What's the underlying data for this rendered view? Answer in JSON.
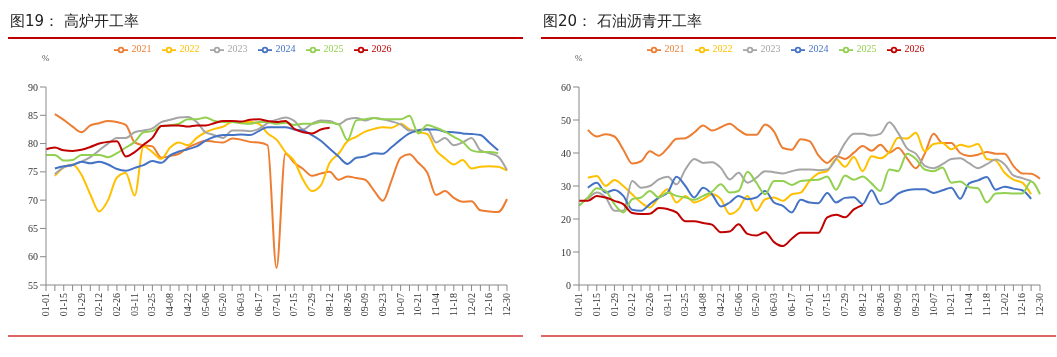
{
  "chart_data": [
    {
      "type": "line",
      "title": "图19：  高炉开工率",
      "ylabel": "%",
      "legend": "top",
      "grid": false,
      "ylim": [
        55,
        90
      ],
      "yticks": [
        55,
        60,
        65,
        70,
        75,
        80,
        85,
        90
      ],
      "categories": [
        "01-01",
        null,
        "01-15",
        null,
        "01-29",
        null,
        "02-12",
        null,
        "02-26",
        null,
        "03-11",
        null,
        "03-25",
        null,
        "04-08",
        null,
        "04-22",
        null,
        "05-06",
        null,
        "05-20",
        null,
        "06-03",
        null,
        "06-17",
        null,
        "07-01",
        null,
        "07-15",
        null,
        "07-29",
        null,
        "08-12",
        null,
        "08-26",
        null,
        "09-09",
        null,
        "09-23",
        null,
        "10-07",
        null,
        "10-21",
        null,
        "11-04",
        null,
        "11-18",
        null,
        "12-02",
        null,
        "12-16",
        null,
        "12-30"
      ],
      "series": [
        {
          "name": "2021",
          "color": "#ed7d31",
          "values": [
            null,
            85.2,
            84.2,
            83,
            82,
            83.2,
            83.6,
            84,
            83.8,
            83.3,
            80.2,
            79.7,
            79.5,
            77.5,
            77.8,
            78.2,
            79.3,
            80,
            80.5,
            80.3,
            80.2,
            80.9,
            80.7,
            80.3,
            80.2,
            79.7,
            58,
            78.2,
            76.6,
            75.5,
            74.3,
            74.7,
            75,
            73.6,
            74.2,
            73.9,
            73.6,
            71.7,
            69.9,
            73.6,
            77.5,
            78.1,
            76.6,
            74.9,
            70.9,
            71.6,
            70.4,
            69.7,
            69.8,
            68.2,
            68,
            67.9,
            70.2
          ]
        },
        {
          "name": "2022",
          "color": "#ffc000",
          "values": [
            null,
            74.3,
            75.8,
            76.3,
            74.5,
            71,
            68,
            70,
            74,
            74.8,
            70.8,
            79.5,
            78.5,
            77.3,
            79.3,
            80.2,
            79.7,
            81,
            82,
            82.6,
            83,
            83.8,
            83.8,
            83.8,
            83.5,
            81.8,
            80.7,
            78.5,
            76.9,
            73.6,
            71.6,
            72.6,
            76.6,
            78.2,
            80.4,
            81.2,
            82.1,
            82.6,
            82.9,
            82.8,
            83.5,
            82.5,
            82,
            81.7,
            78.8,
            77.4,
            76.3,
            77.1,
            75.6,
            75.9,
            76,
            75.9,
            75.2
          ]
        },
        {
          "name": "2023",
          "color": "#a5a5a5",
          "values": [
            null,
            74.6,
            75.8,
            76.2,
            76.8,
            77.6,
            78.8,
            80,
            81,
            81,
            82,
            82.3,
            82.7,
            83.8,
            84.2,
            84.6,
            84.7,
            83.8,
            82,
            81.5,
            81,
            82.3,
            82.3,
            82.2,
            82.6,
            83.6,
            84.2,
            84.6,
            84,
            82.5,
            83.5,
            84.1,
            84,
            83.4,
            84.3,
            84.5,
            84.1,
            84.5,
            84.3,
            83.9,
            83.4,
            82.3,
            82.4,
            82.6,
            80.2,
            81,
            79.7,
            80.2,
            81,
            78.8,
            78.3,
            77.7,
            75.3
          ]
        },
        {
          "name": "2024",
          "color": "#4472c4",
          "values": [
            null,
            75.6,
            76,
            76.2,
            76.8,
            76.5,
            76.8,
            76.3,
            75.5,
            75.2,
            75.7,
            76.2,
            76.9,
            76.6,
            77.9,
            78.6,
            79,
            79.5,
            80.5,
            81.2,
            81.5,
            81.5,
            81.6,
            81.5,
            82.2,
            82.9,
            82.9,
            82.9,
            82.5,
            82.3,
            81.5,
            80.5,
            79.1,
            77.7,
            76.4,
            77.5,
            77.7,
            78.3,
            78.2,
            79.4,
            80.7,
            81.8,
            82.3,
            82.5,
            82.5,
            82.1,
            82,
            81.8,
            81.7,
            81.5,
            80.2,
            78.8,
            null
          ]
        },
        {
          "name": "2025",
          "color": "#92d050",
          "values": [
            78,
            78,
            77,
            77.1,
            78,
            78,
            78,
            77.6,
            78.3,
            79.3,
            80.3,
            82,
            82.2,
            83.1,
            83.2,
            83.5,
            84.3,
            84.3,
            84.6,
            84,
            83.8,
            83.8,
            83.6,
            83.5,
            83.8,
            83.8,
            83.5,
            83.7,
            83.3,
            83.5,
            83.5,
            83.8,
            83.7,
            83.4,
            80.6,
            84.1,
            84.3,
            84.5,
            84.3,
            84.3,
            84.3,
            84.9,
            81.8,
            83.3,
            82.8,
            82.1,
            81.2,
            80.3,
            78.8,
            78.5,
            78.5,
            78.3,
            null
          ]
        },
        {
          "name": "2026",
          "color": "#c00000",
          "values": [
            79,
            79.3,
            78.8,
            78.7,
            78.9,
            79.4,
            80,
            80.3,
            80.4,
            77.7,
            78.5,
            79.8,
            81,
            83.1,
            83.2,
            83.2,
            83,
            83.2,
            83.2,
            83.6,
            84,
            84,
            83.9,
            84.2,
            84.3,
            84,
            83.8,
            84,
            82.6,
            82,
            81.8,
            82.5,
            82.8,
            null,
            null,
            null,
            null,
            null,
            null,
            null,
            null,
            null,
            null,
            null,
            null,
            null,
            null,
            null,
            null,
            null,
            null,
            null,
            null
          ]
        }
      ]
    },
    {
      "type": "line",
      "title": "图20：  石油沥青开工率",
      "ylabel": "%",
      "legend": "top",
      "grid": false,
      "ylim": [
        0,
        60
      ],
      "yticks": [
        0,
        10,
        20,
        30,
        40,
        50,
        60
      ],
      "categories": [
        "01-01",
        null,
        "01-15",
        null,
        "01-29",
        null,
        "02-12",
        null,
        "02-26",
        null,
        "03-11",
        null,
        "03-25",
        null,
        "04-08",
        null,
        "04-22",
        null,
        "05-06",
        null,
        "05-20",
        null,
        "06-03",
        null,
        "06-17",
        null,
        "07-01",
        null,
        "07-15",
        null,
        "07-29",
        null,
        "08-12",
        null,
        "08-26",
        null,
        "09-09",
        null,
        "09-23",
        null,
        "10-07",
        null,
        "10-21",
        null,
        "11-04",
        null,
        "11-18",
        null,
        "12-02",
        null,
        "12-16",
        null,
        "12-30"
      ],
      "series": [
        {
          "name": "2021",
          "color": "#ed7d31",
          "values": [
            null,
            47,
            45,
            45.7,
            45,
            41,
            36.8,
            37.5,
            40.5,
            39.2,
            41.5,
            44.3,
            44.5,
            46.2,
            48.3,
            46.8,
            47.8,
            48.9,
            47,
            45.5,
            45.5,
            48.6,
            46.5,
            41.5,
            41,
            44.2,
            43.6,
            39.3,
            37,
            39.1,
            38.2,
            40.1,
            42.1,
            40.7,
            42.5,
            40.1,
            41.6,
            38.4,
            35.4,
            39.8,
            45.8,
            43,
            43,
            40,
            39.1,
            39.5,
            40.3,
            39.8,
            39.8,
            36.1,
            33.8,
            33.7,
            32.2
          ]
        },
        {
          "name": "2022",
          "color": "#ffc000",
          "values": [
            null,
            32.5,
            33,
            30,
            31.8,
            30,
            27.5,
            25,
            23.5,
            26.5,
            29,
            25,
            27,
            25,
            26,
            27.5,
            26,
            21.5,
            23,
            27,
            22.5,
            26,
            26.5,
            25.5,
            27.5,
            28,
            31.5,
            33.8,
            34.5,
            38.2,
            35.8,
            38.8,
            34.5,
            39,
            38.4,
            40.3,
            44.6,
            44.4,
            46.1,
            40.5,
            42.7,
            43,
            41.1,
            42.5,
            41.9,
            42.7,
            38.2,
            37.7,
            34,
            31.9,
            31,
            27.5,
            null
          ]
        },
        {
          "name": "2023",
          "color": "#a5a5a5",
          "values": [
            null,
            26,
            28,
            26.5,
            22.5,
            22.5,
            31.5,
            29.5,
            30,
            32,
            32.8,
            30.5,
            35,
            38.2,
            37,
            37.2,
            35.5,
            32,
            34,
            31,
            32.5,
            34.5,
            34.2,
            33.8,
            34.5,
            35,
            35,
            34.8,
            35,
            38.2,
            43,
            45.8,
            45.8,
            45.3,
            45.8,
            49.3,
            46.1,
            41.4,
            39.8,
            36.1,
            35.4,
            36.6,
            38.2,
            38.4,
            36.9,
            35.4,
            36.6,
            38,
            36.6,
            33.2,
            32.4,
            31.5,
            null
          ]
        },
        {
          "name": "2024",
          "color": "#4472c4",
          "values": [
            null,
            29.5,
            31,
            28,
            28.8,
            27,
            22.8,
            22.5,
            24.5,
            26.5,
            28,
            32.8,
            30,
            26.5,
            29.5,
            27.5,
            23.8,
            25,
            27,
            26,
            26.5,
            28.5,
            25,
            24,
            22,
            25.8,
            25,
            24.8,
            27.9,
            25,
            26.4,
            26.6,
            24.5,
            28.7,
            24.5,
            25.3,
            27.7,
            28.7,
            29,
            29,
            27.9,
            28.7,
            29.5,
            26.1,
            30.8,
            31.7,
            32.7,
            28.9,
            29.8,
            29.2,
            28.7,
            26.1,
            null
          ]
        },
        {
          "name": "2025",
          "color": "#92d050",
          "values": [
            24,
            26.5,
            29.3,
            28.5,
            24.5,
            22,
            26,
            26.5,
            28.5,
            26.5,
            28,
            27,
            26.5,
            25.8,
            27,
            28.3,
            30.5,
            28,
            28.5,
            34.3,
            31,
            27.5,
            31.5,
            31.5,
            30.3,
            31.5,
            31.8,
            31.9,
            32.9,
            28.9,
            33.2,
            31.9,
            32.9,
            30.8,
            28.5,
            35,
            34.5,
            39.8,
            38.2,
            35,
            34.5,
            35.6,
            31,
            31.4,
            29.6,
            29.3,
            25,
            27.7,
            27.9,
            27.7,
            27.7,
            31.4,
            27.5
          ]
        },
        {
          "name": "2026",
          "color": "#c00000",
          "values": [
            25.5,
            25.5,
            27,
            26.5,
            25.5,
            24.5,
            21.8,
            21.5,
            21.6,
            23.3,
            23,
            22,
            19.3,
            19.3,
            18.8,
            18.3,
            16,
            16.2,
            18.4,
            15.5,
            15,
            16,
            13,
            11.8,
            14,
            15.8,
            15.8,
            15.8,
            20.5,
            21.3,
            20.5,
            22.9,
            24.2,
            null,
            null,
            null,
            null,
            null,
            null,
            null,
            null,
            null,
            null,
            null,
            null,
            null,
            null,
            null,
            null,
            null,
            null,
            null,
            null
          ]
        }
      ]
    }
  ]
}
